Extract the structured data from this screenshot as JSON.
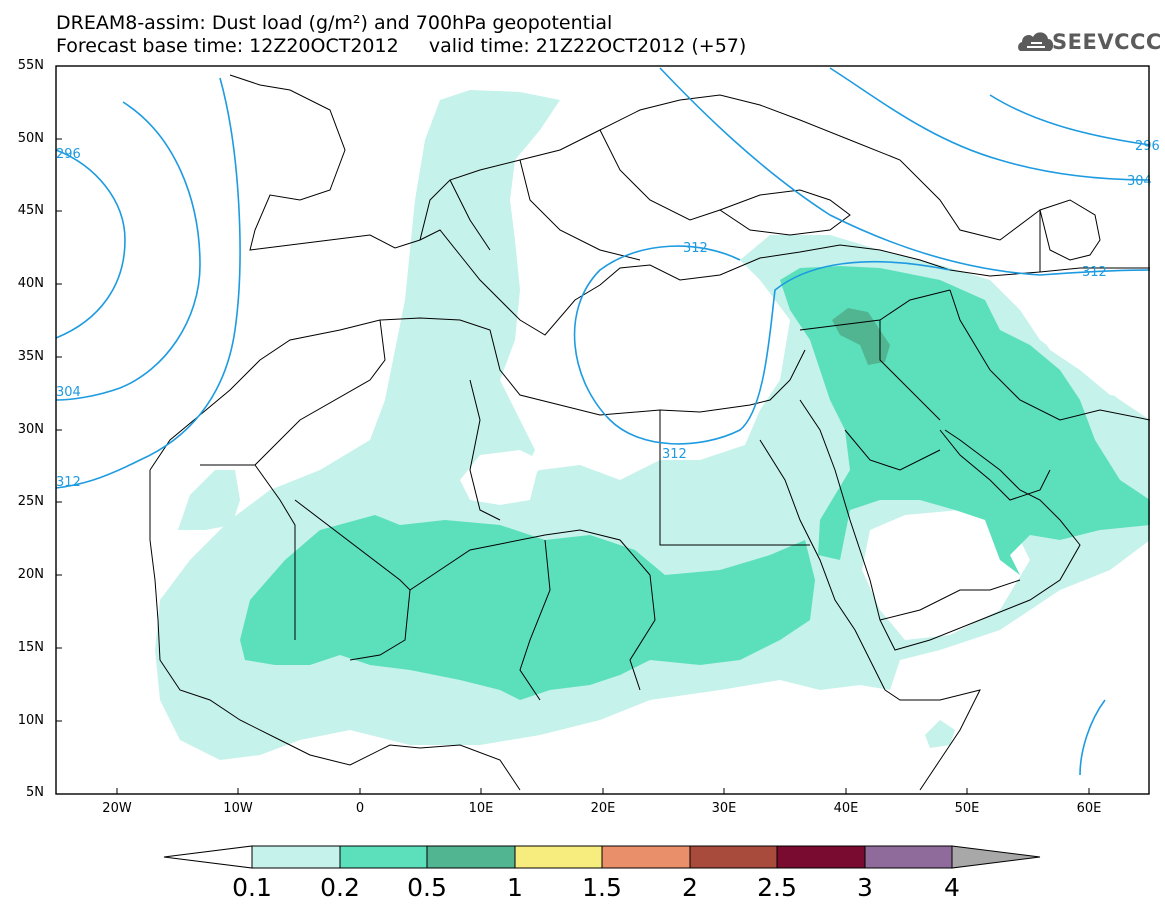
{
  "header": {
    "title_line1": "DREAM8-assim: Dust load (g/m²) and 700hPa geopotential",
    "title_line2": "Forecast base time: 12Z20OCT2012     valid time: 21Z22OCT2012 (+57)",
    "logo_text": "SEEVCCC"
  },
  "axes": {
    "lat_labels": [
      "55N",
      "50N",
      "45N",
      "40N",
      "35N",
      "30N",
      "25N",
      "20N",
      "15N",
      "10N",
      "5N"
    ],
    "lon_labels": [
      "20W",
      "10W",
      "0",
      "10E",
      "20E",
      "30E",
      "40E",
      "50E",
      "60E"
    ]
  },
  "contours": {
    "labels": [
      "296",
      "304",
      "312",
      "312",
      "312",
      "312",
      "304",
      "296"
    ]
  },
  "colorbar": {
    "levels": [
      "0.1",
      "0.2",
      "0.5",
      "1",
      "1.5",
      "2",
      "2.5",
      "3",
      "4"
    ],
    "colors": [
      "#c5f2ea",
      "#5ce0bc",
      "#52b592",
      "#f7ec7e",
      "#e9906a",
      "#a94b3c",
      "#7a0b30",
      "#8f6b9c",
      "#a8a8a8"
    ]
  },
  "colors": {
    "contour": "#1e9be0",
    "border": "#000000",
    "dust_low": "#c5f2ea",
    "dust_mid": "#5ce0bc",
    "dust_high": "#52b592"
  }
}
